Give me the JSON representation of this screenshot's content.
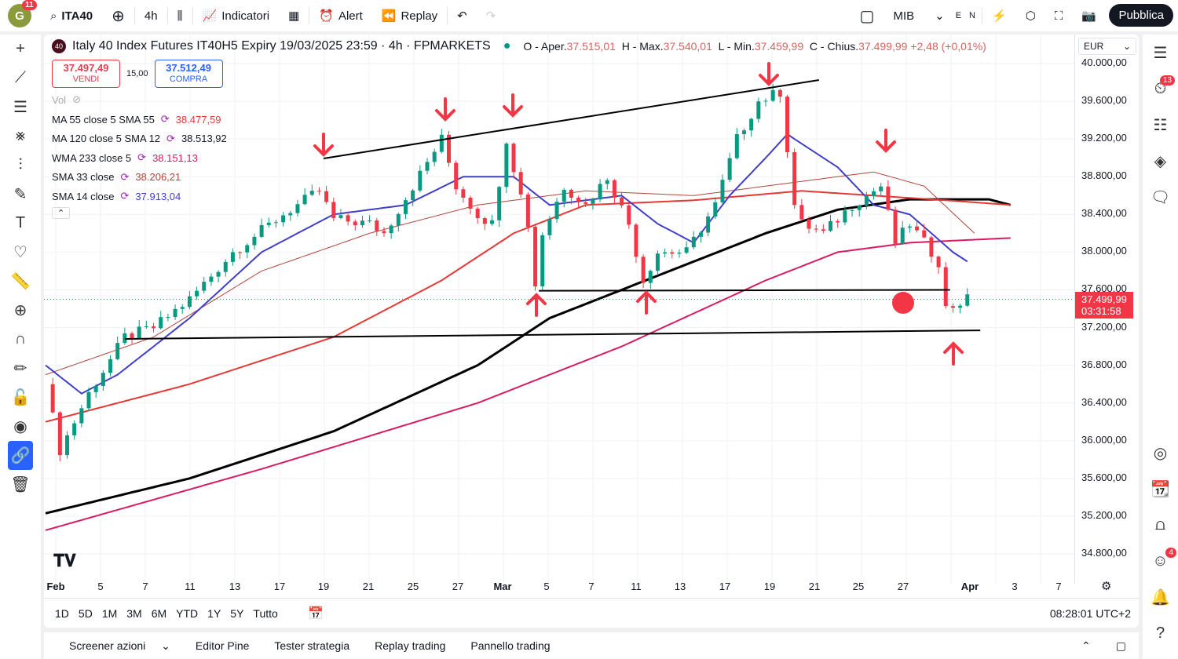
{
  "topbar": {
    "avatar_letter": "G",
    "avatar_badge": "11",
    "symbol": "ITA40",
    "interval": "4h",
    "indicators": "Indicatori",
    "alert": "Alert",
    "replay": "Replay",
    "watch": "MIB",
    "e": "E",
    "n": "N",
    "publish": "Pubblica"
  },
  "header": {
    "badge": "40",
    "title": "Italy 40 Index Futures IT40H5 Expiry 19/03/2025 23:59 · 4h · FPMARKETS",
    "o_label": "O - Aper.",
    "o": "37.515,01",
    "h_label": "H - Max.",
    "h": "37.540,01",
    "l_label": "L - Min.",
    "l": "37.459,99",
    "c_label": "C - Chius.",
    "c": "37.499,99",
    "change": "+2,48 (+0,01%)",
    "currency": "EUR"
  },
  "trade": {
    "sell_price": "37.497,49",
    "sell": "VENDI",
    "spread": "15,00",
    "buy_price": "37.512,49",
    "buy": "COMPRA"
  },
  "indicators": [
    {
      "label": "Vol"
    },
    {
      "label": "MA 55 close 5 SMA 55",
      "value": "38.477,59",
      "color": "#e53935"
    },
    {
      "label": "MA 120 close 5 SMA 12",
      "value": "38.513,92",
      "color": "#131722"
    },
    {
      "label": "WMA 233 close 5",
      "value": "38.151,13",
      "color": "#d81b60"
    },
    {
      "label": "SMA 33 close",
      "value": "38.206,21",
      "color": "#b0453a"
    },
    {
      "label": "SMA 14 close",
      "value": "37.913,04",
      "color": "#3f3fc8"
    }
  ],
  "price_axis": {
    "labels": [
      "40.000,00",
      "39.600,00",
      "39.200,00",
      "38.800,00",
      "38.400,00",
      "38.000,00",
      "37.600,00",
      "37.200,00",
      "36.800,00",
      "36.400,00",
      "36.000,00",
      "35.600,00",
      "35.200,00",
      "34.800,00"
    ],
    "current_price": "37.499,99",
    "countdown": "03:31:58"
  },
  "time_axis": [
    "Feb",
    "5",
    "7",
    "11",
    "13",
    "17",
    "19",
    "21",
    "25",
    "27",
    "Mar",
    "5",
    "7",
    "11",
    "13",
    "17",
    "19",
    "21",
    "25",
    "27",
    "Apr",
    "3",
    "7"
  ],
  "ranges": [
    "1D",
    "5D",
    "1M",
    "3M",
    "6M",
    "YTD",
    "1Y",
    "5Y",
    "Tutto"
  ],
  "clock": "08:28:01 UTC+2",
  "bottom_tabs": [
    "Screener azioni",
    "Editor Pine",
    "Tester strategia",
    "Replay trading",
    "Pannello trading"
  ],
  "right_badges": {
    "alerts": "13",
    "chat": "4"
  },
  "chart_data": {
    "type": "candlestick",
    "ylim": [
      34700,
      40200
    ],
    "bars": 130,
    "price_path": [
      [
        0,
        36600
      ],
      [
        2,
        35900
      ],
      [
        6,
        36500
      ],
      [
        11,
        37100
      ],
      [
        15,
        37200
      ],
      [
        20,
        37500
      ],
      [
        26,
        38000
      ],
      [
        33,
        38400
      ],
      [
        38,
        38650
      ],
      [
        40,
        38350
      ],
      [
        45,
        38300
      ],
      [
        47,
        38200
      ],
      [
        51,
        38700
      ],
      [
        55,
        39200
      ],
      [
        57,
        38700
      ],
      [
        60,
        38400
      ],
      [
        62,
        38300
      ],
      [
        64,
        39200
      ],
      [
        67,
        38300
      ],
      [
        68,
        37650
      ],
      [
        69,
        38200
      ],
      [
        72,
        38700
      ],
      [
        75,
        38500
      ],
      [
        78,
        38800
      ],
      [
        81,
        38300
      ],
      [
        83,
        37700
      ],
      [
        85,
        38000
      ],
      [
        89,
        38000
      ],
      [
        93,
        38500
      ],
      [
        96,
        39200
      ],
      [
        99,
        39600
      ],
      [
        102,
        39700
      ],
      [
        104,
        38500
      ],
      [
        105,
        38300
      ],
      [
        108,
        38200
      ],
      [
        112,
        38500
      ],
      [
        116,
        38700
      ],
      [
        118,
        38100
      ],
      [
        120,
        38300
      ],
      [
        122,
        38100
      ],
      [
        124,
        37900
      ],
      [
        125,
        37400
      ],
      [
        128,
        37500
      ]
    ],
    "ma_lines": [
      {
        "name": "MA 120",
        "color": "#000000",
        "width": 3,
        "points": [
          [
            0,
            35230
          ],
          [
            20,
            35600
          ],
          [
            40,
            36100
          ],
          [
            60,
            36800
          ],
          [
            70,
            37300
          ],
          [
            80,
            37600
          ],
          [
            90,
            37900
          ],
          [
            100,
            38200
          ],
          [
            110,
            38450
          ],
          [
            120,
            38560
          ],
          [
            131,
            38560
          ],
          [
            134,
            38500
          ]
        ]
      },
      {
        "name": "WMA 233",
        "color": "#d81b60",
        "width": 2,
        "points": [
          [
            0,
            35050
          ],
          [
            30,
            35700
          ],
          [
            60,
            36400
          ],
          [
            80,
            37000
          ],
          [
            100,
            37700
          ],
          [
            110,
            38000
          ],
          [
            120,
            38100
          ],
          [
            134,
            38150
          ]
        ]
      },
      {
        "name": "MA 55",
        "color": "#e53935",
        "width": 2,
        "points": [
          [
            0,
            36200
          ],
          [
            20,
            36600
          ],
          [
            40,
            37100
          ],
          [
            55,
            37700
          ],
          [
            65,
            38200
          ],
          [
            75,
            38500
          ],
          [
            90,
            38550
          ],
          [
            105,
            38650
          ],
          [
            115,
            38600
          ],
          [
            125,
            38550
          ],
          [
            134,
            38500
          ]
        ]
      },
      {
        "name": "SMA 33",
        "color": "#b0453a",
        "width": 1,
        "points": [
          [
            0,
            36700
          ],
          [
            15,
            37100
          ],
          [
            30,
            37800
          ],
          [
            45,
            38200
          ],
          [
            60,
            38500
          ],
          [
            75,
            38650
          ],
          [
            90,
            38600
          ],
          [
            100,
            38700
          ],
          [
            115,
            38850
          ],
          [
            122,
            38700
          ],
          [
            129,
            38200
          ]
        ]
      },
      {
        "name": "SMA 14",
        "color": "#3f3fc8",
        "width": 2,
        "points": [
          [
            0,
            36800
          ],
          [
            5,
            36500
          ],
          [
            10,
            36700
          ],
          [
            20,
            37300
          ],
          [
            30,
            38000
          ],
          [
            40,
            38400
          ],
          [
            50,
            38500
          ],
          [
            58,
            38800
          ],
          [
            65,
            38800
          ],
          [
            70,
            38500
          ],
          [
            80,
            38600
          ],
          [
            85,
            38300
          ],
          [
            90,
            38100
          ],
          [
            95,
            38600
          ],
          [
            100,
            39000
          ],
          [
            103,
            39250
          ],
          [
            110,
            38900
          ],
          [
            115,
            38500
          ],
          [
            120,
            38400
          ],
          [
            126,
            38000
          ],
          [
            128,
            37900
          ]
        ]
      }
    ],
    "trendlines": [
      [
        [
          38.6,
          38993
        ],
        [
          107.4,
          39825
        ]
      ],
      [
        [
          68.5,
          37590
        ],
        [
          125.6,
          37600
        ]
      ],
      [
        [
          11,
          37080
        ],
        [
          129.8,
          37170
        ]
      ]
    ]
  }
}
